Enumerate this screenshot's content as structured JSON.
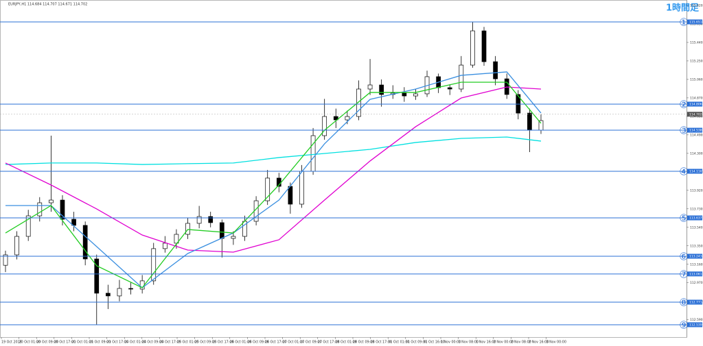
{
  "chart_data": {
    "type": "candlestick",
    "title": "EURJPY,H1  114.684 114.707 114.671 114.702",
    "timeframe_label": "1時間足",
    "ylim": [
      112.412,
      115.862
    ],
    "yticks": [
      {
        "value": 115.82,
        "label": "115.820"
      },
      {
        "value": 115.63,
        "label": "115.630"
      },
      {
        "value": 115.44,
        "label": "115.440"
      },
      {
        "value": 115.25,
        "label": "115.250"
      },
      {
        "value": 115.06,
        "label": "115.060"
      },
      {
        "value": 114.87,
        "label": "114.870"
      },
      {
        "value": 114.68,
        "label": "114.680"
      },
      {
        "value": 114.49,
        "label": "114.490"
      },
      {
        "value": 114.3,
        "label": "114.300"
      },
      {
        "value": 114.11,
        "label": "114.110"
      },
      {
        "value": 113.92,
        "label": "113.920"
      },
      {
        "value": 113.73,
        "label": "113.730"
      },
      {
        "value": 113.54,
        "label": "113.540"
      },
      {
        "value": 113.35,
        "label": "113.350"
      },
      {
        "value": 113.16,
        "label": "113.160"
      },
      {
        "value": 112.97,
        "label": "112.970"
      },
      {
        "value": 112.78,
        "label": "112.780"
      },
      {
        "value": 112.59,
        "label": "112.590"
      }
    ],
    "x_labels": [
      "19 Oct 2016",
      "20 Oct 01:00",
      "20 Oct 09:00",
      "20 Oct 17:00",
      "21 Oct 01:00",
      "21 Oct 09:00",
      "21 Oct 17:00",
      "24 Oct 01:00",
      "24 Oct 09:00",
      "24 Oct 17:00",
      "25 Oct 01:00",
      "25 Oct 09:00",
      "25 Oct 17:00",
      "26 Oct 01:00",
      "26 Oct 09:00",
      "26 Oct 17:00",
      "27 Oct 01:00",
      "27 Oct 09:00",
      "27 Oct 17:00",
      "28 Oct 01:00",
      "28 Oct 09:00",
      "28 Oct 17:00",
      "31 Oct 01:00",
      "31 Oct 09:00",
      "31 Oct 16:00",
      "1 Nov 00:00",
      "1 Nov 08:00",
      "1 Nov 16:00",
      "2 Nov 00:00",
      "2 Nov 08:00",
      "2 Nov 16:00",
      "3 Nov 00:00"
    ],
    "candles": [
      [
        113.15,
        113.3,
        113.08,
        113.257
      ],
      [
        113.257,
        113.5,
        113.21,
        113.447
      ],
      [
        113.447,
        113.72,
        113.4,
        113.658
      ],
      [
        113.658,
        113.85,
        113.6,
        113.792
      ],
      [
        113.792,
        114.482,
        113.7,
        113.82
      ],
      [
        113.82,
        113.87,
        113.56,
        113.623
      ],
      [
        113.623,
        113.7,
        113.5,
        113.56
      ],
      [
        113.56,
        113.6,
        113.15,
        113.215
      ],
      [
        113.215,
        113.26,
        112.539,
        112.863
      ],
      [
        112.863,
        112.95,
        112.7,
        112.835
      ],
      [
        112.835,
        113.0,
        112.78,
        112.912
      ],
      [
        112.912,
        112.98,
        112.85,
        112.905
      ],
      [
        112.905,
        113.05,
        112.86,
        112.99
      ],
      [
        112.99,
        113.38,
        112.95,
        113.321
      ],
      [
        113.321,
        113.45,
        113.28,
        113.377
      ],
      [
        113.377,
        113.52,
        113.32,
        113.468
      ],
      [
        113.468,
        113.64,
        113.42,
        113.581
      ],
      [
        113.581,
        113.76,
        113.53,
        113.651
      ],
      [
        113.651,
        113.7,
        113.54,
        113.588
      ],
      [
        113.588,
        113.62,
        113.23,
        113.426
      ],
      [
        113.426,
        113.5,
        113.36,
        113.447
      ],
      [
        113.447,
        113.66,
        113.4,
        113.602
      ],
      [
        113.602,
        113.86,
        113.56,
        113.813
      ],
      [
        113.813,
        114.13,
        113.77,
        114.046
      ],
      [
        114.046,
        114.1,
        113.9,
        113.961
      ],
      [
        113.961,
        114.0,
        113.68,
        113.778
      ],
      [
        113.778,
        114.18,
        113.74,
        114.116
      ],
      [
        114.116,
        114.56,
        114.08,
        114.482
      ],
      [
        114.482,
        114.86,
        114.44,
        114.679
      ],
      [
        114.679,
        114.76,
        114.56,
        114.644
      ],
      [
        114.644,
        114.74,
        114.6,
        114.679
      ],
      [
        114.679,
        115.05,
        114.64,
        114.961
      ],
      [
        114.961,
        115.27,
        114.9,
        115.003
      ],
      [
        115.003,
        115.06,
        114.78,
        114.905
      ],
      [
        114.905,
        115.0,
        114.86,
        114.919
      ],
      [
        114.919,
        114.98,
        114.83,
        114.89
      ],
      [
        114.89,
        114.96,
        114.85,
        114.912
      ],
      [
        114.912,
        115.15,
        114.88,
        115.088
      ],
      [
        115.088,
        115.12,
        114.92,
        114.975
      ],
      [
        114.975,
        115.01,
        114.9,
        114.961
      ],
      [
        114.961,
        115.3,
        114.93,
        115.207
      ],
      [
        115.207,
        115.651,
        115.18,
        115.559
      ],
      [
        115.559,
        115.6,
        115.2,
        115.242
      ],
      [
        115.242,
        115.3,
        115.0,
        115.066
      ],
      [
        115.066,
        115.12,
        114.86,
        114.905
      ],
      [
        114.905,
        114.95,
        114.65,
        114.714
      ],
      [
        114.714,
        114.76,
        114.313,
        114.538
      ],
      [
        114.538,
        114.7,
        114.5,
        114.637
      ]
    ],
    "indicators": [
      {
        "color": "#00e0e0",
        "x": [
          0,
          4,
          8,
          12,
          16,
          20,
          24,
          28,
          32,
          36,
          40,
          44,
          47
        ],
        "values": [
          114.186,
          114.201,
          114.201,
          114.186,
          114.194,
          114.201,
          114.257,
          114.299,
          114.341,
          114.412,
          114.454,
          114.468,
          114.426
        ]
      },
      {
        "color": "#e000d0",
        "x": [
          0,
          4,
          8,
          12,
          16,
          20,
          24,
          28,
          32,
          36,
          40,
          44,
          47
        ],
        "values": [
          114.201,
          113.975,
          113.729,
          113.461,
          113.306,
          113.285,
          113.412,
          113.82,
          114.222,
          114.574,
          114.869,
          114.982,
          114.961
        ]
      },
      {
        "color": "#3a8fe0",
        "x": [
          0,
          4,
          8,
          12,
          16,
          20,
          24,
          28,
          32,
          36,
          40,
          44,
          47
        ],
        "values": [
          113.764,
          113.764,
          113.342,
          112.919,
          113.271,
          113.482,
          113.82,
          114.398,
          114.855,
          114.961,
          115.102,
          115.137,
          114.714
        ]
      },
      {
        "color": "#22cc22",
        "x": [
          0,
          4,
          8,
          12,
          16,
          20,
          24,
          28,
          32,
          36,
          40,
          44,
          47
        ],
        "values": [
          113.482,
          113.764,
          113.145,
          112.919,
          113.518,
          113.482,
          113.975,
          114.538,
          114.926,
          114.926,
          115.031,
          115.031,
          114.609
        ]
      }
    ],
    "current_price": 114.702,
    "levels": [
      {
        "marker": "①",
        "price": 115.651
      },
      {
        "marker": "②",
        "price": 114.806
      },
      {
        "marker": "③",
        "price": 114.538
      },
      {
        "marker": "④",
        "price": 114.116
      },
      {
        "marker": "⑤",
        "price": 113.637
      },
      {
        "marker": "⑥",
        "price": 113.243
      },
      {
        "marker": "⑦",
        "price": 113.061
      },
      {
        "marker": "⑧",
        "price": 112.771
      },
      {
        "marker": "⑨",
        "price": 112.539
      }
    ],
    "level_color": "#2a6fd6"
  }
}
